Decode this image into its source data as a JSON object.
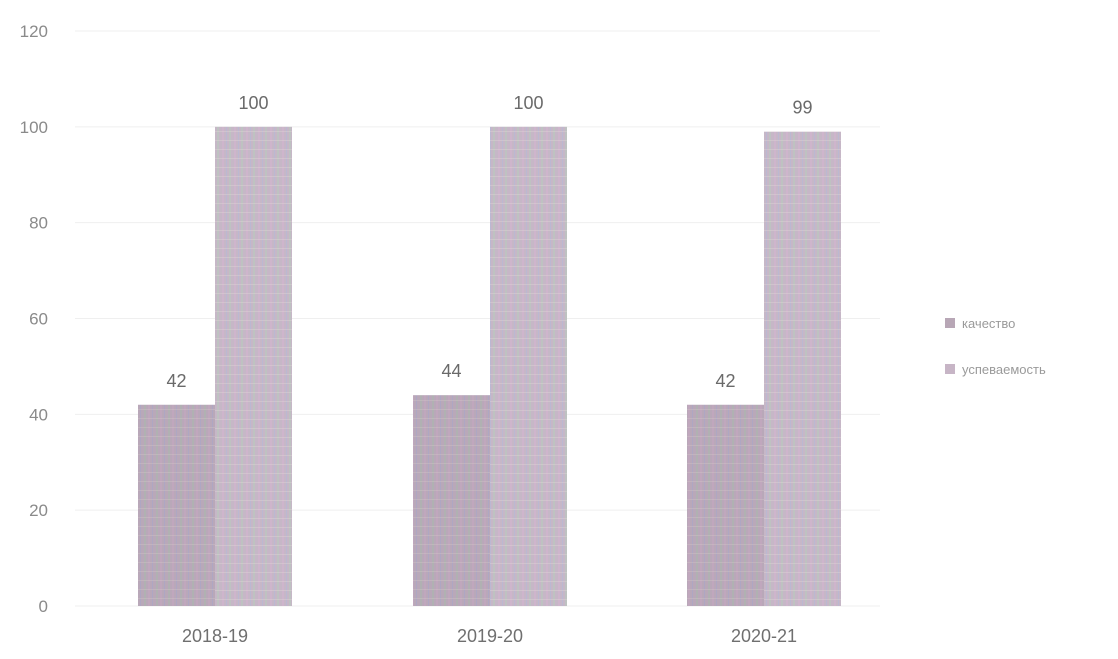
{
  "chart_data": {
    "type": "bar",
    "categories": [
      "2018-19",
      "2019-20",
      "2020-21"
    ],
    "series": [
      {
        "name": "качество",
        "values": [
          42,
          44,
          42
        ],
        "color": "#b8a7b6"
      },
      {
        "name": "успеваемость",
        "values": [
          100,
          100,
          99
        ],
        "color": "#c7b5c6"
      }
    ],
    "ylim": [
      0,
      120
    ],
    "yticks": [
      0,
      20,
      40,
      60,
      80,
      100,
      120
    ],
    "grid": true,
    "legend": "right",
    "data_labels": true
  }
}
